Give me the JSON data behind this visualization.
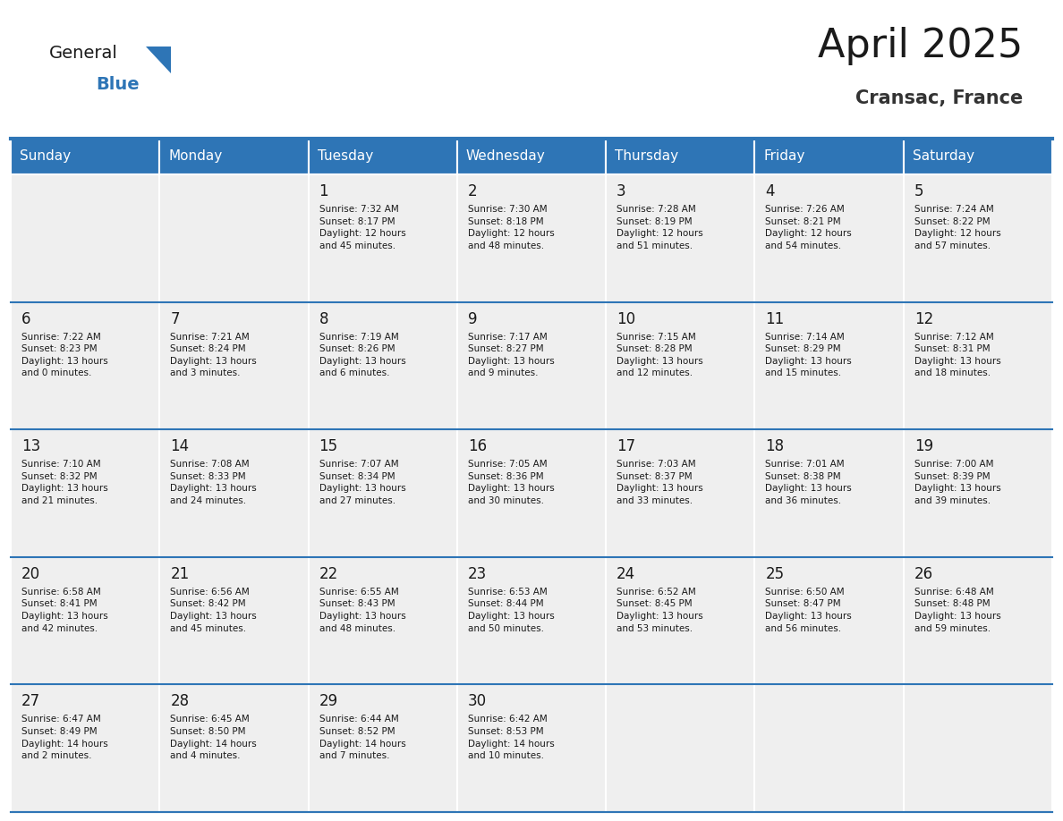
{
  "title": "April 2025",
  "subtitle": "Cransac, France",
  "header_bg_color": "#2E75B6",
  "header_text_color": "#FFFFFF",
  "cell_bg_color": "#EFEFEF",
  "day_number_color": "#1a1a1a",
  "cell_text_color": "#1a1a1a",
  "title_color": "#1a1a1a",
  "subtitle_color": "#333333",
  "row_line_color": "#2E75B6",
  "weekdays": [
    "Sunday",
    "Monday",
    "Tuesday",
    "Wednesday",
    "Thursday",
    "Friday",
    "Saturday"
  ],
  "weeks": [
    [
      {
        "day": null,
        "info": null
      },
      {
        "day": null,
        "info": null
      },
      {
        "day": 1,
        "info": "Sunrise: 7:32 AM\nSunset: 8:17 PM\nDaylight: 12 hours\nand 45 minutes."
      },
      {
        "day": 2,
        "info": "Sunrise: 7:30 AM\nSunset: 8:18 PM\nDaylight: 12 hours\nand 48 minutes."
      },
      {
        "day": 3,
        "info": "Sunrise: 7:28 AM\nSunset: 8:19 PM\nDaylight: 12 hours\nand 51 minutes."
      },
      {
        "day": 4,
        "info": "Sunrise: 7:26 AM\nSunset: 8:21 PM\nDaylight: 12 hours\nand 54 minutes."
      },
      {
        "day": 5,
        "info": "Sunrise: 7:24 AM\nSunset: 8:22 PM\nDaylight: 12 hours\nand 57 minutes."
      }
    ],
    [
      {
        "day": 6,
        "info": "Sunrise: 7:22 AM\nSunset: 8:23 PM\nDaylight: 13 hours\nand 0 minutes."
      },
      {
        "day": 7,
        "info": "Sunrise: 7:21 AM\nSunset: 8:24 PM\nDaylight: 13 hours\nand 3 minutes."
      },
      {
        "day": 8,
        "info": "Sunrise: 7:19 AM\nSunset: 8:26 PM\nDaylight: 13 hours\nand 6 minutes."
      },
      {
        "day": 9,
        "info": "Sunrise: 7:17 AM\nSunset: 8:27 PM\nDaylight: 13 hours\nand 9 minutes."
      },
      {
        "day": 10,
        "info": "Sunrise: 7:15 AM\nSunset: 8:28 PM\nDaylight: 13 hours\nand 12 minutes."
      },
      {
        "day": 11,
        "info": "Sunrise: 7:14 AM\nSunset: 8:29 PM\nDaylight: 13 hours\nand 15 minutes."
      },
      {
        "day": 12,
        "info": "Sunrise: 7:12 AM\nSunset: 8:31 PM\nDaylight: 13 hours\nand 18 minutes."
      }
    ],
    [
      {
        "day": 13,
        "info": "Sunrise: 7:10 AM\nSunset: 8:32 PM\nDaylight: 13 hours\nand 21 minutes."
      },
      {
        "day": 14,
        "info": "Sunrise: 7:08 AM\nSunset: 8:33 PM\nDaylight: 13 hours\nand 24 minutes."
      },
      {
        "day": 15,
        "info": "Sunrise: 7:07 AM\nSunset: 8:34 PM\nDaylight: 13 hours\nand 27 minutes."
      },
      {
        "day": 16,
        "info": "Sunrise: 7:05 AM\nSunset: 8:36 PM\nDaylight: 13 hours\nand 30 minutes."
      },
      {
        "day": 17,
        "info": "Sunrise: 7:03 AM\nSunset: 8:37 PM\nDaylight: 13 hours\nand 33 minutes."
      },
      {
        "day": 18,
        "info": "Sunrise: 7:01 AM\nSunset: 8:38 PM\nDaylight: 13 hours\nand 36 minutes."
      },
      {
        "day": 19,
        "info": "Sunrise: 7:00 AM\nSunset: 8:39 PM\nDaylight: 13 hours\nand 39 minutes."
      }
    ],
    [
      {
        "day": 20,
        "info": "Sunrise: 6:58 AM\nSunset: 8:41 PM\nDaylight: 13 hours\nand 42 minutes."
      },
      {
        "day": 21,
        "info": "Sunrise: 6:56 AM\nSunset: 8:42 PM\nDaylight: 13 hours\nand 45 minutes."
      },
      {
        "day": 22,
        "info": "Sunrise: 6:55 AM\nSunset: 8:43 PM\nDaylight: 13 hours\nand 48 minutes."
      },
      {
        "day": 23,
        "info": "Sunrise: 6:53 AM\nSunset: 8:44 PM\nDaylight: 13 hours\nand 50 minutes."
      },
      {
        "day": 24,
        "info": "Sunrise: 6:52 AM\nSunset: 8:45 PM\nDaylight: 13 hours\nand 53 minutes."
      },
      {
        "day": 25,
        "info": "Sunrise: 6:50 AM\nSunset: 8:47 PM\nDaylight: 13 hours\nand 56 minutes."
      },
      {
        "day": 26,
        "info": "Sunrise: 6:48 AM\nSunset: 8:48 PM\nDaylight: 13 hours\nand 59 minutes."
      }
    ],
    [
      {
        "day": 27,
        "info": "Sunrise: 6:47 AM\nSunset: 8:49 PM\nDaylight: 14 hours\nand 2 minutes."
      },
      {
        "day": 28,
        "info": "Sunrise: 6:45 AM\nSunset: 8:50 PM\nDaylight: 14 hours\nand 4 minutes."
      },
      {
        "day": 29,
        "info": "Sunrise: 6:44 AM\nSunset: 8:52 PM\nDaylight: 14 hours\nand 7 minutes."
      },
      {
        "day": 30,
        "info": "Sunrise: 6:42 AM\nSunset: 8:53 PM\nDaylight: 14 hours\nand 10 minutes."
      },
      {
        "day": null,
        "info": null
      },
      {
        "day": null,
        "info": null
      },
      {
        "day": null,
        "info": null
      }
    ]
  ]
}
